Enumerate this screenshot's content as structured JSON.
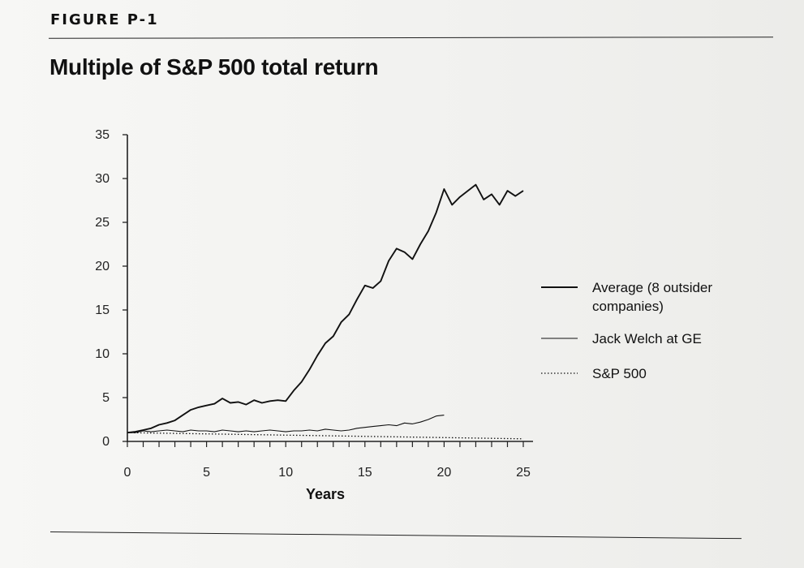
{
  "figure_label": "FIGURE P-1",
  "colors": {
    "ink": "#111111",
    "paper": "#f4f4f2"
  },
  "chart_data": {
    "type": "line",
    "title": "Multiple of S&P 500 total return",
    "xlabel": "Years",
    "ylabel": "",
    "xlim": [
      0,
      25
    ],
    "ylim": [
      0,
      35
    ],
    "xticks": [
      0,
      5,
      10,
      15,
      20,
      25
    ],
    "yticks": [
      0,
      5,
      10,
      15,
      20,
      25,
      30,
      35
    ],
    "grid": false,
    "legend_position": "right",
    "series": [
      {
        "name": "Average (8 outsider companies)",
        "legend_lines": [
          "Average (8 outsider",
          "companies)"
        ],
        "style": "solid-thick",
        "x": [
          0,
          0.5,
          1,
          1.5,
          2,
          2.5,
          3,
          3.5,
          4,
          4.5,
          5,
          5.5,
          6,
          6.5,
          7,
          7.5,
          8,
          8.5,
          9,
          9.5,
          10,
          10.5,
          11,
          11.5,
          12,
          12.5,
          13,
          13.5,
          14,
          14.5,
          15,
          15.5,
          16,
          16.5,
          17,
          17.5,
          18,
          18.5,
          19,
          19.5,
          20,
          20.5,
          21,
          21.5,
          22,
          22.5,
          23,
          23.5,
          24,
          24.5,
          25
        ],
        "y": [
          1.0,
          1.1,
          1.3,
          1.5,
          1.9,
          2.1,
          2.4,
          3.0,
          3.6,
          3.9,
          4.1,
          4.3,
          4.9,
          4.4,
          4.5,
          4.2,
          4.7,
          4.4,
          4.6,
          4.7,
          4.6,
          5.8,
          6.8,
          8.2,
          9.8,
          11.2,
          12.0,
          13.6,
          14.5,
          16.2,
          17.8,
          17.5,
          18.3,
          20.6,
          22.0,
          21.6,
          20.8,
          22.5,
          24.0,
          26.1,
          28.8,
          27.0,
          27.9,
          28.6,
          29.3,
          27.6,
          28.2,
          27.0,
          28.6,
          28.0,
          28.6
        ]
      },
      {
        "name": "Jack Welch at GE",
        "style": "solid-thin",
        "x": [
          0,
          0.5,
          1,
          1.5,
          2,
          2.5,
          3,
          3.5,
          4,
          4.5,
          5,
          5.5,
          6,
          6.5,
          7,
          7.5,
          8,
          8.5,
          9,
          9.5,
          10,
          10.5,
          11,
          11.5,
          12,
          12.5,
          13,
          13.5,
          14,
          14.5,
          15,
          15.5,
          16,
          16.5,
          17,
          17.5,
          18,
          18.5,
          19,
          19.5,
          20
        ],
        "y": [
          1.0,
          1.0,
          1.2,
          1.1,
          1.2,
          1.3,
          1.2,
          1.1,
          1.3,
          1.2,
          1.2,
          1.1,
          1.3,
          1.2,
          1.1,
          1.2,
          1.1,
          1.2,
          1.3,
          1.2,
          1.1,
          1.2,
          1.2,
          1.3,
          1.2,
          1.4,
          1.3,
          1.2,
          1.3,
          1.5,
          1.6,
          1.7,
          1.8,
          1.9,
          1.8,
          2.1,
          2.0,
          2.2,
          2.5,
          2.9,
          3.0
        ]
      },
      {
        "name": "S&P 500",
        "style": "dotted",
        "x": [
          0,
          25
        ],
        "y": [
          1.0,
          0.3
        ]
      }
    ]
  }
}
